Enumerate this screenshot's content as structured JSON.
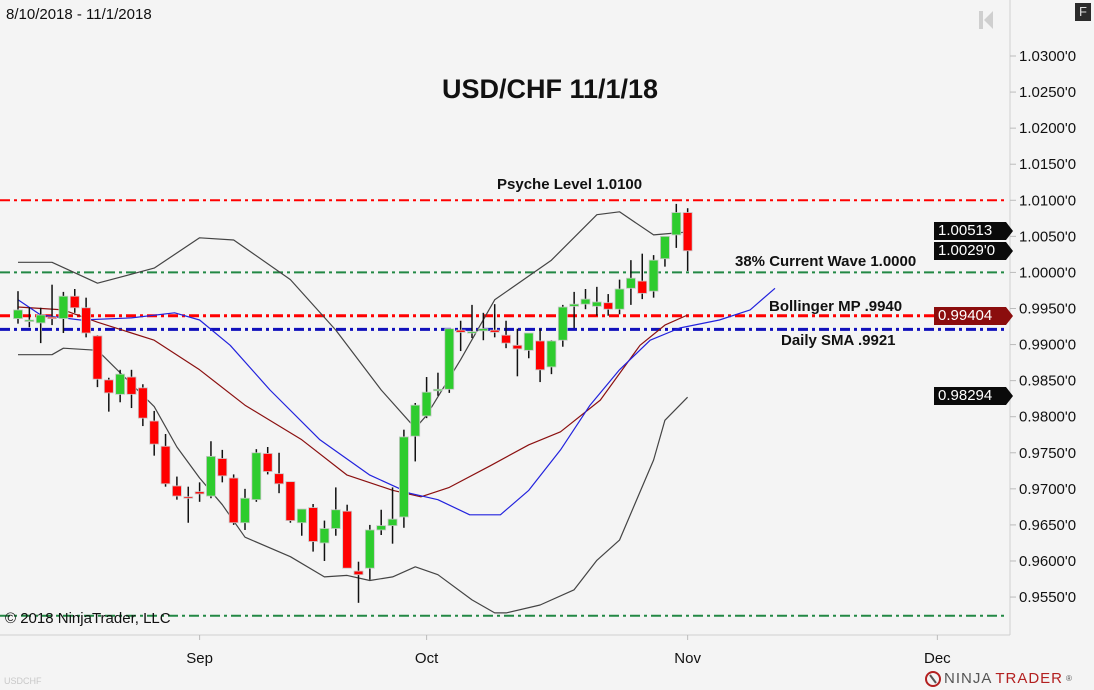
{
  "header": {
    "date_range": "8/10/2018 - 11/1/2018",
    "format_button": "F"
  },
  "footer": {
    "copyright": "© 2018 NinjaTrader, LLC",
    "symbol": "USDCHF",
    "logo_ninja": "NINJA",
    "logo_trader": "TRADER",
    "logo_reg": "®"
  },
  "colors": {
    "up": "#2ecc2e",
    "down": "#ff0000",
    "upper_band": "#444444",
    "middle_band": "#8b1010",
    "sma": "#2222dd",
    "bg": "#f4f4f4"
  },
  "chart_data": {
    "type": "candlestick",
    "title": "USD/CHF 11/1/18",
    "x_tick_labels": [
      {
        "label": "Sep",
        "bar": 16
      },
      {
        "label": "Oct",
        "bar": 36
      },
      {
        "label": "Nov",
        "bar": 59
      },
      {
        "label": "Dec",
        "bar": 81
      }
    ],
    "ylim": [
      0.9475,
      1.0375
    ],
    "y_ticks": [
      1.03,
      1.025,
      1.02,
      1.015,
      1.01,
      1.005,
      1.0,
      0.995,
      0.99,
      0.985,
      0.98,
      0.975,
      0.97,
      0.965,
      0.96,
      0.955
    ],
    "y_tick_labels": [
      "1.0300'0",
      "1.0250'0",
      "1.0200'0",
      "1.0150'0",
      "1.0100'0",
      "1.0050'0",
      "1.0000'0",
      "0.9950'0",
      "0.9900'0",
      "0.9850'0",
      "0.9800'0",
      "0.9750'0",
      "0.9700'0",
      "0.9650'0",
      "0.9600'0",
      "0.9550'0"
    ],
    "ohlc": [
      [
        0.9936,
        0.9974,
        0.9929,
        0.9948
      ],
      [
        0.9933,
        0.9952,
        0.9924,
        0.9934
      ],
      [
        0.993,
        0.9951,
        0.9902,
        0.9941
      ],
      [
        0.9938,
        0.9983,
        0.9927,
        0.9937
      ],
      [
        0.9936,
        0.9973,
        0.9916,
        0.9967
      ],
      [
        0.9967,
        0.9977,
        0.9944,
        0.9951
      ],
      [
        0.9951,
        0.9965,
        0.991,
        0.9916
      ],
      [
        0.9912,
        0.9913,
        0.9841,
        0.9852
      ],
      [
        0.9851,
        0.9854,
        0.9807,
        0.9833
      ],
      [
        0.9831,
        0.9865,
        0.982,
        0.9859
      ],
      [
        0.9855,
        0.9865,
        0.9812,
        0.9831
      ],
      [
        0.984,
        0.9845,
        0.9787,
        0.9798
      ],
      [
        0.9794,
        0.9808,
        0.9746,
        0.9762
      ],
      [
        0.9759,
        0.9776,
        0.9703,
        0.9707
      ],
      [
        0.9704,
        0.9717,
        0.9685,
        0.969
      ],
      [
        0.9689,
        0.9703,
        0.9653,
        0.9687
      ],
      [
        0.9696,
        0.9709,
        0.9682,
        0.9693
      ],
      [
        0.969,
        0.9766,
        0.9687,
        0.9745
      ],
      [
        0.9742,
        0.9754,
        0.9709,
        0.9718
      ],
      [
        0.9715,
        0.972,
        0.965,
        0.9653
      ],
      [
        0.9653,
        0.97,
        0.9643,
        0.9687
      ],
      [
        0.9685,
        0.9755,
        0.9682,
        0.975
      ],
      [
        0.9749,
        0.9758,
        0.972,
        0.9724
      ],
      [
        0.9721,
        0.975,
        0.9694,
        0.9707
      ],
      [
        0.971,
        0.971,
        0.9653,
        0.9656
      ],
      [
        0.9653,
        0.9672,
        0.9635,
        0.9672
      ],
      [
        0.9674,
        0.9679,
        0.9613,
        0.9627
      ],
      [
        0.9625,
        0.9656,
        0.96,
        0.9645
      ],
      [
        0.9645,
        0.9702,
        0.9635,
        0.9671
      ],
      [
        0.9669,
        0.9678,
        0.959,
        0.959
      ],
      [
        0.9586,
        0.9599,
        0.9542,
        0.9581
      ],
      [
        0.959,
        0.965,
        0.9574,
        0.9643
      ],
      [
        0.9643,
        0.9671,
        0.9636,
        0.9649
      ],
      [
        0.9649,
        0.9702,
        0.9624,
        0.9658
      ],
      [
        0.9661,
        0.9782,
        0.9646,
        0.9772
      ],
      [
        0.9773,
        0.9819,
        0.9738,
        0.9816
      ],
      [
        0.9801,
        0.9855,
        0.9798,
        0.9834
      ],
      [
        0.9837,
        0.9861,
        0.9829,
        0.9838
      ],
      [
        0.9838,
        0.9922,
        0.9833,
        0.9922
      ],
      [
        0.992,
        0.9933,
        0.9891,
        0.9917
      ],
      [
        0.9917,
        0.9955,
        0.9909,
        0.9918
      ],
      [
        0.9919,
        0.9944,
        0.9906,
        0.9922
      ],
      [
        0.992,
        0.9956,
        0.991,
        0.9917
      ],
      [
        0.9913,
        0.9933,
        0.9895,
        0.9902
      ],
      [
        0.9899,
        0.9922,
        0.9856,
        0.9894
      ],
      [
        0.9892,
        0.9916,
        0.9881,
        0.9916
      ],
      [
        0.9905,
        0.9922,
        0.9848,
        0.9865
      ],
      [
        0.9869,
        0.9906,
        0.9859,
        0.9905
      ],
      [
        0.9906,
        0.9955,
        0.9897,
        0.9952
      ],
      [
        0.9953,
        0.9973,
        0.9923,
        0.9956
      ],
      [
        0.9956,
        0.9977,
        0.9949,
        0.9963
      ],
      [
        0.9953,
        0.998,
        0.994,
        0.9959
      ],
      [
        0.9958,
        0.997,
        0.994,
        0.9949
      ],
      [
        0.9949,
        0.999,
        0.9942,
        0.9977
      ],
      [
        0.9978,
        1.0017,
        0.9955,
        0.9992
      ],
      [
        0.9988,
        1.0026,
        0.9963,
        0.9971
      ],
      [
        0.9974,
        1.0024,
        0.9965,
        1.0017
      ],
      [
        1.0019,
        1.005,
        1.0008,
        1.005
      ],
      [
        1.0052,
        1.0095,
        1.0034,
        1.0083
      ],
      [
        1.0083,
        1.0089,
        1.0002,
        1.003
      ]
    ],
    "indicators": {
      "bollinger_upper": [
        [
          0,
          1.0014
        ],
        [
          3,
          1.0014
        ],
        [
          7,
          0.9985
        ],
        [
          12,
          1.0006
        ],
        [
          16,
          1.0048
        ],
        [
          19,
          1.0045
        ],
        [
          24,
          0.999
        ],
        [
          28,
          0.992
        ],
        [
          32,
          0.9837
        ],
        [
          35,
          0.9784
        ],
        [
          36,
          0.9802
        ],
        [
          39,
          0.9879
        ],
        [
          42,
          0.9962
        ],
        [
          47,
          1.0017
        ],
        [
          51,
          1.008
        ],
        [
          53,
          1.0084
        ],
        [
          56,
          1.0052
        ],
        [
          59,
          1.0056
        ]
      ],
      "bollinger_lower": [
        [
          0,
          0.9886
        ],
        [
          3,
          0.9886
        ],
        [
          4,
          0.9895
        ],
        [
          7,
          0.9892
        ],
        [
          12,
          0.9814
        ],
        [
          14,
          0.9758
        ],
        [
          16,
          0.9715
        ],
        [
          18,
          0.9678
        ],
        [
          20,
          0.9633
        ],
        [
          24,
          0.9606
        ],
        [
          27,
          0.9578
        ],
        [
          29,
          0.958
        ],
        [
          31,
          0.9573
        ],
        [
          33,
          0.9578
        ],
        [
          35,
          0.9592
        ],
        [
          37,
          0.9581
        ],
        [
          40,
          0.9546
        ],
        [
          42,
          0.9528
        ],
        [
          43,
          0.9528
        ],
        [
          46,
          0.9539
        ],
        [
          49,
          0.956
        ],
        [
          51,
          0.9601
        ],
        [
          53,
          0.9629
        ],
        [
          56,
          0.974
        ],
        [
          57,
          0.9795
        ],
        [
          59,
          0.9827
        ]
      ],
      "bollinger_middle": [
        [
          0,
          0.9952
        ],
        [
          4,
          0.9948
        ],
        [
          7,
          0.9931
        ],
        [
          12,
          0.9906
        ],
        [
          16,
          0.9865
        ],
        [
          20,
          0.9816
        ],
        [
          25,
          0.9768
        ],
        [
          29,
          0.9719
        ],
        [
          33,
          0.9698
        ],
        [
          35.5,
          0.9689
        ],
        [
          38,
          0.9702
        ],
        [
          41.6,
          0.9732
        ],
        [
          45,
          0.9761
        ],
        [
          47.8,
          0.9779
        ],
        [
          51.3,
          0.9823
        ],
        [
          54.8,
          0.9899
        ],
        [
          57,
          0.9927
        ],
        [
          59,
          0.9941
        ]
      ],
      "sma": [
        [
          0,
          0.9962
        ],
        [
          2,
          0.9941
        ],
        [
          5.5,
          0.9934
        ],
        [
          10,
          0.9937
        ],
        [
          13.8,
          0.9944
        ],
        [
          16,
          0.9934
        ],
        [
          18.7,
          0.9899
        ],
        [
          22.2,
          0.9837
        ],
        [
          26.6,
          0.9768
        ],
        [
          31,
          0.9719
        ],
        [
          34.5,
          0.9694
        ],
        [
          37,
          0.9685
        ],
        [
          39.8,
          0.9664
        ],
        [
          42.5,
          0.9664
        ],
        [
          45,
          0.9698
        ],
        [
          47.8,
          0.9754
        ],
        [
          50.4,
          0.9816
        ],
        [
          53,
          0.9865
        ],
        [
          55.7,
          0.9906
        ],
        [
          58.3,
          0.9923
        ],
        [
          61.8,
          0.9934
        ],
        [
          64.5,
          0.9948
        ],
        [
          66.7,
          0.9978
        ]
      ]
    },
    "levels": [
      {
        "name": "psyche-level",
        "price": 1.01,
        "color": "#ff0000",
        "label": "Psyche Level 1.0100"
      },
      {
        "name": "wave-38",
        "price": 1.0,
        "color": "#228844",
        "label": "38% Current Wave 1.0000"
      },
      {
        "name": "bollinger-mp",
        "price": 0.994,
        "color": "#ff0000",
        "label": "Bollinger MP .9940"
      },
      {
        "name": "daily-sma",
        "price": 0.9921,
        "color": "#1010bb",
        "label": "Daily SMA .9921"
      },
      {
        "name": "bottom-level",
        "price": 0.9524,
        "color": "#228844",
        "label": ""
      }
    ],
    "price_markers": [
      {
        "label": "1.00513",
        "price": 1.0051,
        "color": "#0a0a0a"
      },
      {
        "label": "1.0029'0",
        "price": 1.003,
        "color": "#0a0a0a"
      },
      {
        "label": "0.99404",
        "price": 0.994,
        "color": "#8b0d0d"
      },
      {
        "label": "0.98294",
        "price": 0.9829,
        "color": "#0a0a0a"
      }
    ]
  }
}
